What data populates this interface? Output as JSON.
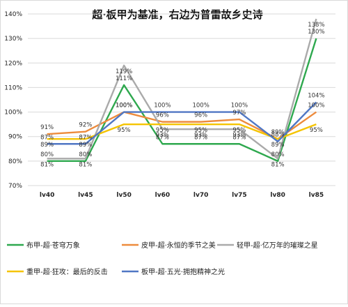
{
  "chart_data": {
    "type": "line",
    "title": "超·板甲为基准，右边为普雷故乡史诗",
    "categories": [
      "lv40",
      "lv45",
      "lv50",
      "lv60",
      "lv70",
      "lv75",
      "lv80",
      "lv85"
    ],
    "ylim": [
      70,
      140
    ],
    "yticks": [
      "70%",
      "80%",
      "90%",
      "100%",
      "110%",
      "120%",
      "130%",
      "140%"
    ],
    "grid": true,
    "legend_position": "bottom",
    "series": [
      {
        "name": "布甲-超·苍穹万象",
        "color": "#2ea84e",
        "values": [
          80,
          80,
          111,
          87,
          87,
          87,
          80,
          130
        ],
        "labels": [
          "80%",
          "80%",
          "111%",
          "87%",
          "87%",
          "87%",
          "80%",
          "130%"
        ]
      },
      {
        "name": "皮甲-超·永恒的季节之美",
        "color": "#ed8b3c",
        "values": [
          91,
          92,
          100,
          96,
          96,
          97,
          89,
          100
        ],
        "labels": [
          "91%",
          "92%",
          "100%",
          "96%",
          "96%",
          "97%",
          "89%",
          "100%"
        ]
      },
      {
        "name": "轻甲-超·亿万年的璀璨之星",
        "color": "#aaaaaa",
        "values": [
          81,
          81,
          119,
          93,
          93,
          93,
          81,
          138
        ],
        "labels": [
          "81%",
          "81%",
          "119%",
          "93%",
          "93%",
          "93%",
          "81%",
          "138%"
        ]
      },
      {
        "name": "重甲-超·狂攻：最后的反击",
        "color": "#f5c400",
        "values": [
          89,
          89,
          95,
          95,
          95,
          95,
          89,
          95
        ],
        "labels": [
          "89%",
          "89%",
          "95%",
          "95%",
          "95%",
          "95%",
          "89%",
          "95%"
        ]
      },
      {
        "name": "板甲-超·五光·拥抱精神之光",
        "color": "#5077c4",
        "values": [
          87,
          87,
          100,
          100,
          100,
          100,
          88,
          104
        ],
        "labels": [
          "87%",
          "87%",
          "100%",
          "100%",
          "100%",
          "100%",
          "88%",
          "104%"
        ]
      }
    ]
  }
}
